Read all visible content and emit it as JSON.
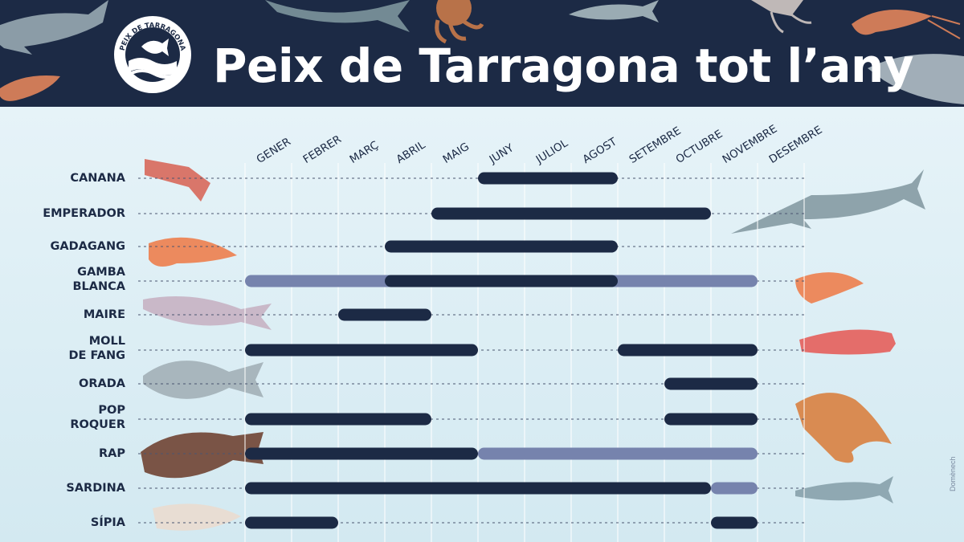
{
  "header": {
    "title": "Peix de Tarragona tot l’any",
    "logo_text": "PEIX DE TARRAGONA"
  },
  "credit": "Domènech",
  "colors": {
    "header_bg": "#1c2a45",
    "season_peak": "#1c2a45",
    "season_low": "#7683ad",
    "background": "#d6ecf3"
  },
  "chart_data": {
    "type": "gantt",
    "months": [
      "GENER",
      "FEBRER",
      "MARÇ",
      "ABRIL",
      "MAIG",
      "JUNY",
      "JULIOL",
      "AGOST",
      "SETEMBRE",
      "OCTUBRE",
      "NOVEMBRE",
      "DESEMBRE"
    ],
    "species": [
      {
        "name": "CANANA",
        "dark": [
          [
            6,
            9
          ]
        ],
        "light": []
      },
      {
        "name": "EMPERADOR",
        "dark": [
          [
            5,
            11
          ]
        ],
        "light": []
      },
      {
        "name": "GADAGANG",
        "dark": [
          [
            4,
            9
          ]
        ],
        "light": []
      },
      {
        "name": "GAMBA\nBLANCA",
        "dark": [
          [
            4,
            9
          ]
        ],
        "light": [
          [
            1,
            12
          ]
        ]
      },
      {
        "name": "MAIRE",
        "dark": [
          [
            3,
            5
          ]
        ],
        "light": []
      },
      {
        "name": "MOLL\nDE FANG",
        "dark": [
          [
            1,
            6
          ],
          [
            9,
            12
          ]
        ],
        "light": []
      },
      {
        "name": "ORADA",
        "dark": [
          [
            10,
            12
          ]
        ],
        "light": []
      },
      {
        "name": "POP\nROQUER",
        "dark": [
          [
            1,
            5
          ],
          [
            10,
            12
          ]
        ],
        "light": []
      },
      {
        "name": "RAP",
        "dark": [
          [
            1,
            6
          ]
        ],
        "light": [
          [
            6,
            12
          ]
        ]
      },
      {
        "name": "SARDINA",
        "dark": [
          [
            1,
            11
          ]
        ],
        "light": [
          [
            11,
            12
          ]
        ]
      },
      {
        "name": "SÍPIA",
        "dark": [
          [
            1,
            3
          ],
          [
            11,
            12
          ]
        ],
        "light": []
      }
    ],
    "legend": "none",
    "grid": true
  }
}
